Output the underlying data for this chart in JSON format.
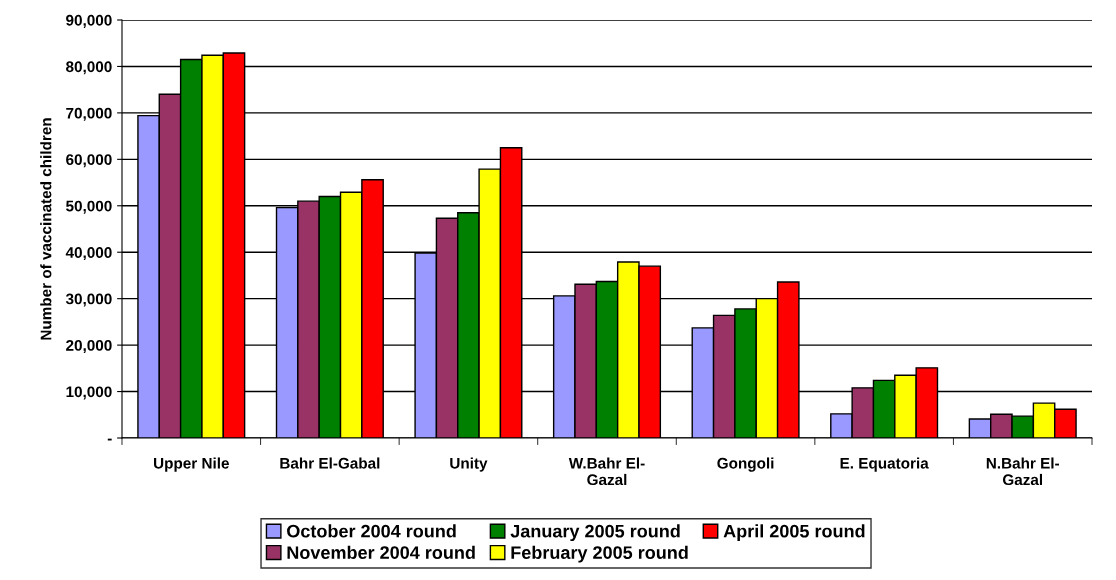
{
  "chart_data": {
    "type": "bar",
    "ylabel": "Number of vaccinated children",
    "categories": [
      "Upper Nile",
      "Bahr El-Gabal",
      "Unity",
      "W.Bahr El-\nGazal",
      "Gongoli",
      "E. Equatoria",
      "N.Bahr El-\nGazal"
    ],
    "series": [
      {
        "name": "October 2004 round",
        "color": "#9999ff",
        "values": [
          69400,
          49600,
          39800,
          30600,
          23700,
          5200,
          4100
        ]
      },
      {
        "name": "November 2004 round",
        "color": "#993366",
        "values": [
          74000,
          51000,
          47300,
          33100,
          26400,
          10800,
          5100
        ]
      },
      {
        "name": "January 2005 round",
        "color": "#008000",
        "values": [
          81500,
          52000,
          48500,
          33700,
          27800,
          12400,
          4700
        ]
      },
      {
        "name": "February 2005 round",
        "color": "#ffff00",
        "values": [
          82400,
          52900,
          57900,
          37900,
          30000,
          13500,
          7500
        ]
      },
      {
        "name": "April 2005 round",
        "color": "#ff0000",
        "values": [
          82900,
          55600,
          62500,
          37000,
          33600,
          15100,
          6200
        ]
      }
    ],
    "ylim": [
      0,
      90000
    ],
    "yticks": [
      {
        "value": 0,
        "label": "-"
      },
      {
        "value": 10000,
        "label": "10,000"
      },
      {
        "value": 20000,
        "label": "20,000"
      },
      {
        "value": 30000,
        "label": "30,000"
      },
      {
        "value": 40000,
        "label": "40,000"
      },
      {
        "value": 50000,
        "label": "50,000"
      },
      {
        "value": 60000,
        "label": "60,000"
      },
      {
        "value": 70000,
        "label": "70,000"
      },
      {
        "value": 80000,
        "label": "80,000"
      },
      {
        "value": 90000,
        "label": "90,000"
      }
    ],
    "grid": "y",
    "legend": "bottom"
  }
}
